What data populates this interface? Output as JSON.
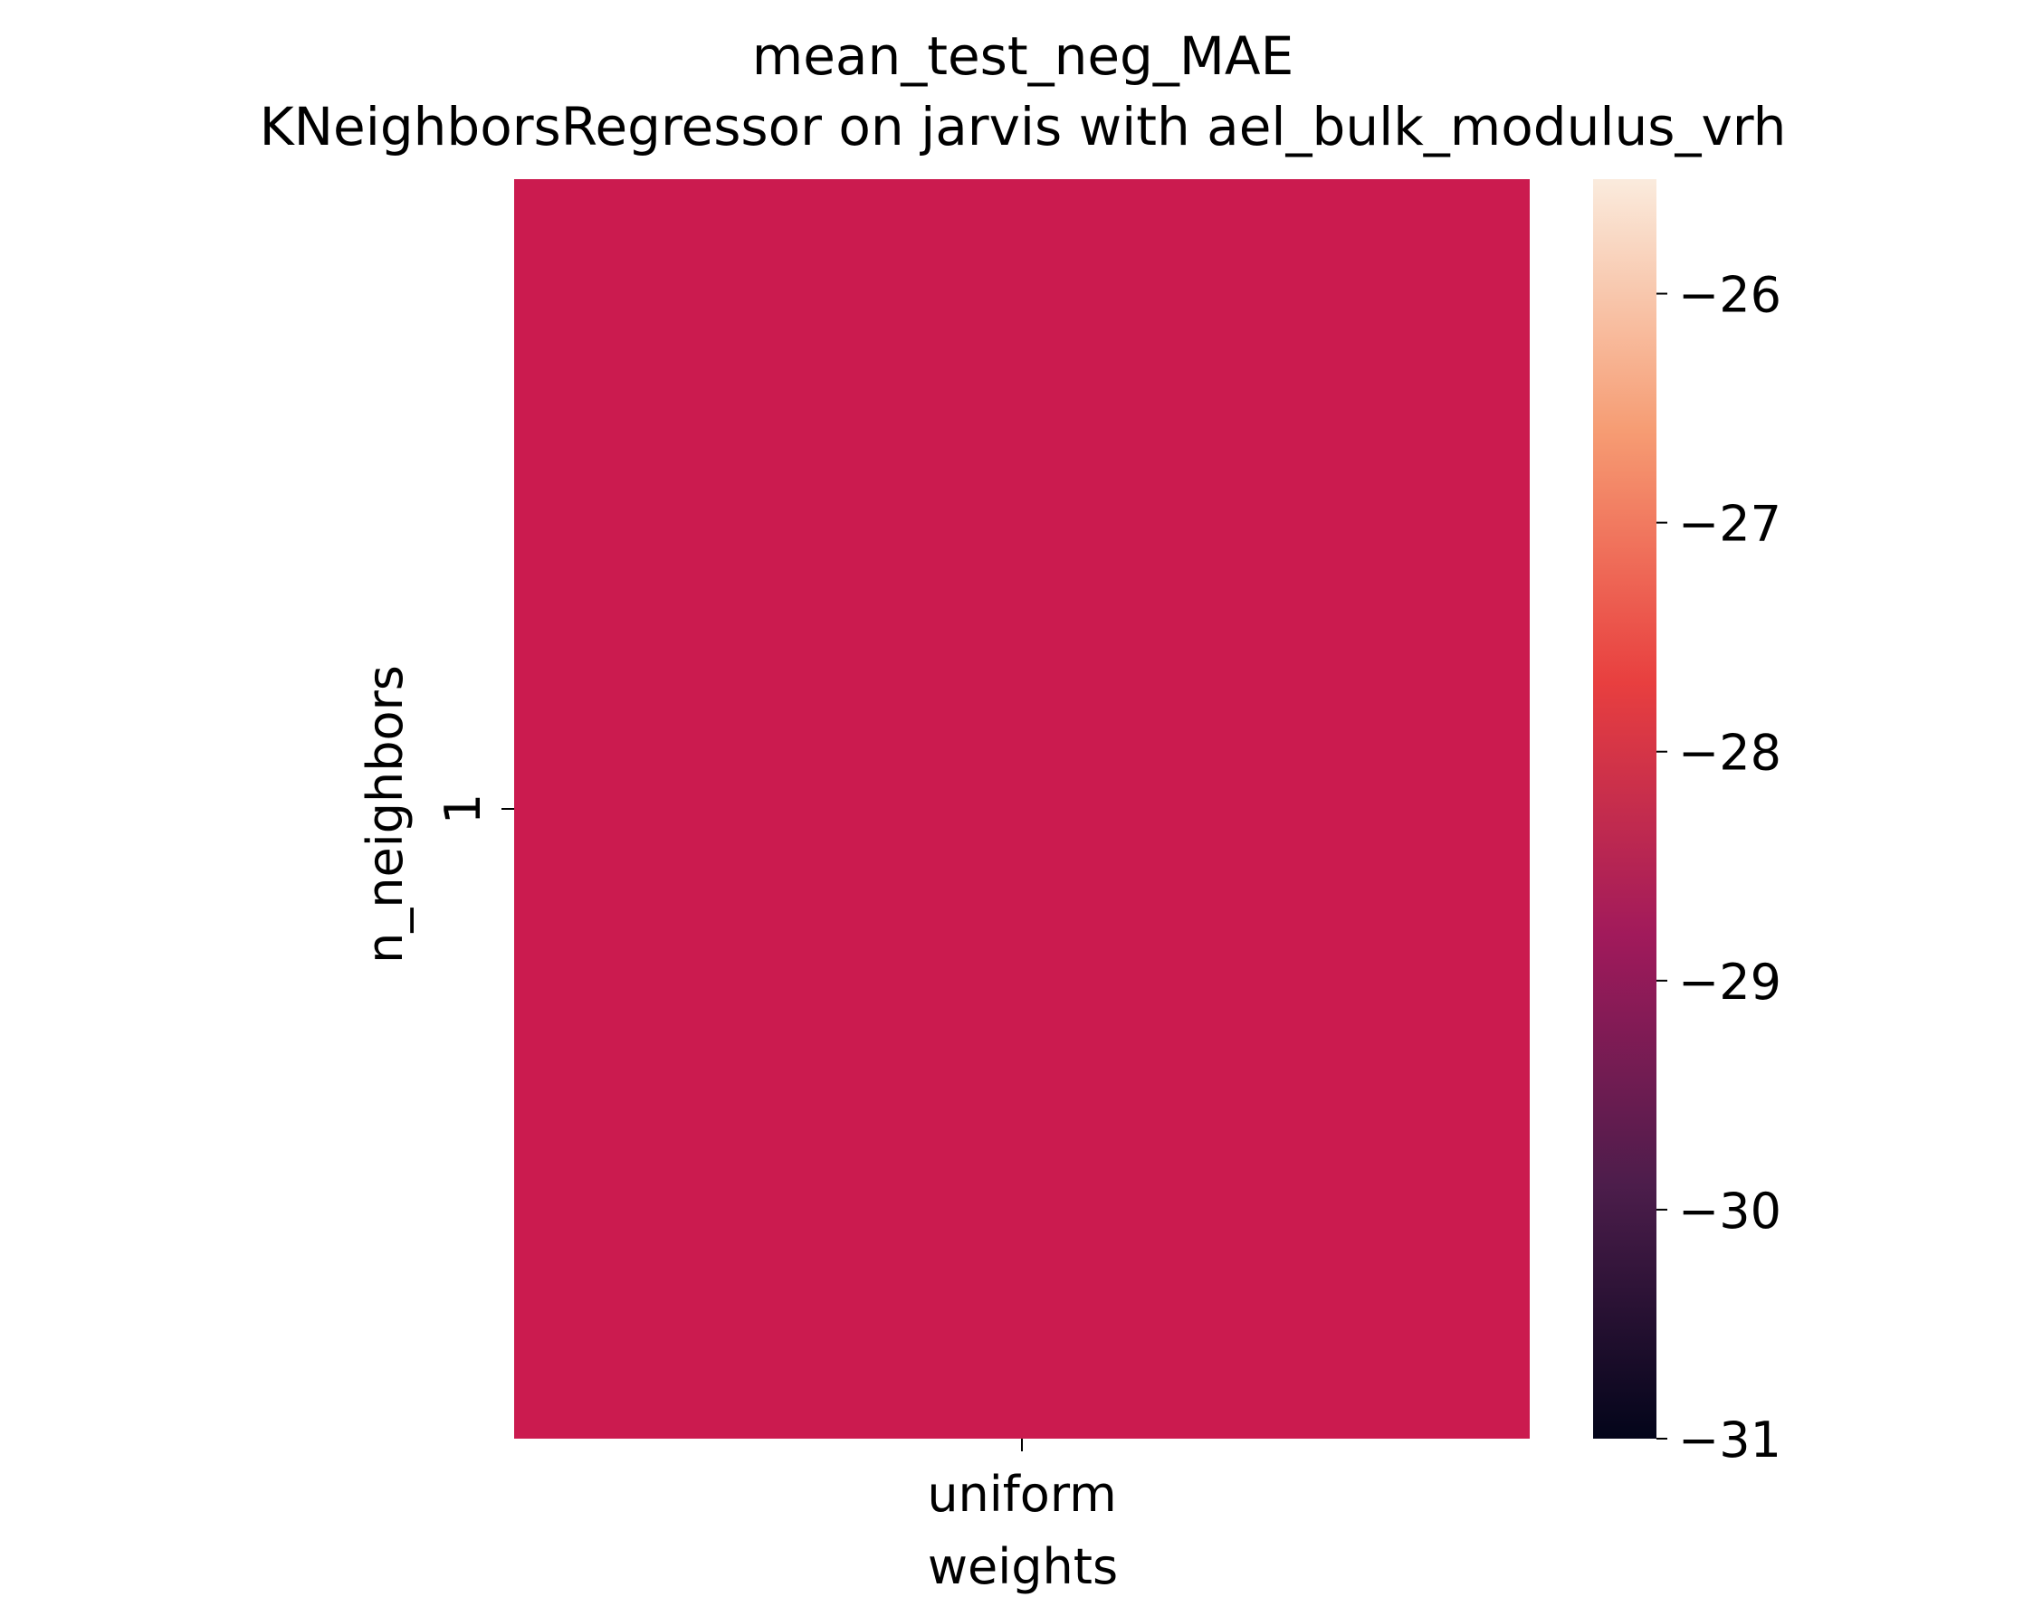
{
  "chart_data": {
    "type": "heatmap",
    "title": "mean_test_neg_MAE",
    "subtitle": "KNeighborsRegressor on jarvis with ael_bulk_modulus_vrh",
    "xlabel": "weights",
    "ylabel": "n_neighbors",
    "x_categories": [
      "uniform"
    ],
    "y_categories": [
      "1"
    ],
    "values": [
      [
        -28.4
      ]
    ],
    "colorbar": {
      "min": -31.0,
      "max": -25.5,
      "ticks": [
        -26,
        -27,
        -28,
        -29,
        -30,
        -31
      ],
      "tick_labels": [
        "−26",
        "−27",
        "−28",
        "−29",
        "−30",
        "−31"
      ],
      "colormap": "rocket",
      "colors": [
        "#03051a",
        "#4c1d4b",
        "#a11a5b",
        "#e83f3f",
        "#f69c73",
        "#faebdd"
      ]
    },
    "cell_color": "#cb1b4f"
  }
}
